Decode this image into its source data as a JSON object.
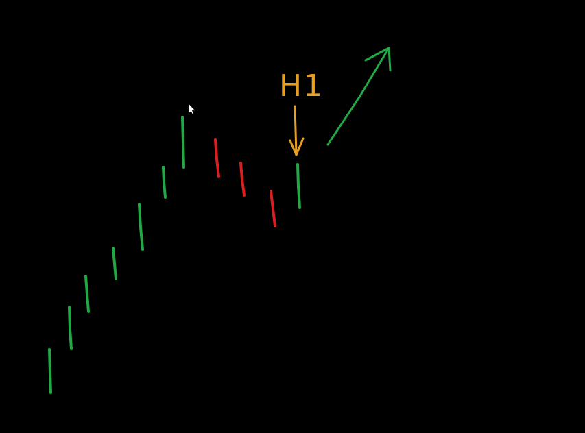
{
  "colors": {
    "background": "#000000",
    "up": "#22a845",
    "down": "#d91f1f",
    "annotation": "#e5a024",
    "cursor": "#ffffff"
  },
  "annotation": {
    "label": "H1"
  },
  "icons": {
    "cursor": "mouse-pointer-icon",
    "down_arrow": "arrow-down-icon",
    "up_arrow": "arrow-up-right-icon"
  }
}
